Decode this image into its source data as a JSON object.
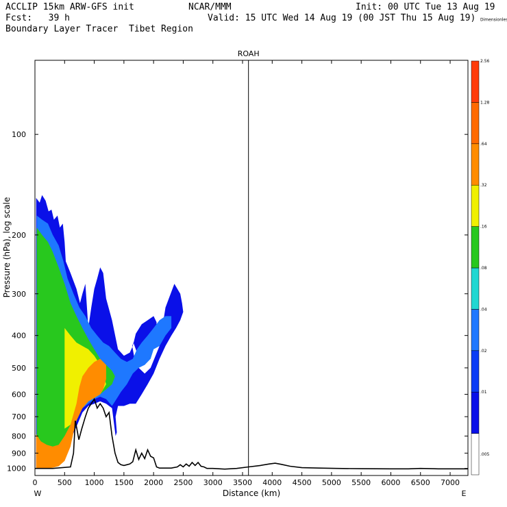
{
  "header": {
    "left_line1": "ACCLIP 15km ARW-GFS init",
    "center_line1": "NCAR/MMM",
    "right_line1": "Init: 00 UTC Tue 13 Aug 19",
    "left_line2": "Fcst:   39 h",
    "right_line2": "Valid: 15 UTC Wed 14 Aug 19 (00 JST Thu 15 Aug 19)",
    "line3": "Boundary Layer Tracer  Tibet Region"
  },
  "chart_data": {
    "type": "contour cross-section",
    "marker_label": "ROAH",
    "marker_distance_km": 3600,
    "xlabel": "Distance (km)",
    "x_end_left": "W",
    "x_end_right": "E",
    "xlim": [
      0,
      7300
    ],
    "x_ticks": [
      0,
      500,
      1000,
      1500,
      2000,
      2500,
      3000,
      3500,
      4000,
      4500,
      5000,
      5500,
      6000,
      6500,
      7000
    ],
    "ylabel": "Pressure (hPa), log scale",
    "yscale": "log",
    "ylim": [
      1050,
      60
    ],
    "y_ticks": [
      100,
      200,
      300,
      400,
      500,
      600,
      700,
      800,
      900,
      1000
    ],
    "colorbar": {
      "title": "Dimensionless",
      "levels": [
        ".005",
        ".01",
        ".02",
        ".04",
        ".08",
        ".16",
        ".32",
        ".64",
        "1.28",
        "2.56",
        "Dimensionless"
      ],
      "colors": [
        "#ffffff",
        "#0a10e8",
        "#0a3cf5",
        "#1e78ff",
        "#20d7d2",
        "#28c81e",
        "#f0f000",
        "#ff8c00",
        "#ff6a00",
        "#ff3c0a"
      ]
    },
    "terrain_profile": {
      "x_km": [
        0,
        300,
        600,
        650,
        680,
        700,
        740,
        790,
        850,
        900,
        950,
        1000,
        1050,
        1100,
        1150,
        1200,
        1250,
        1300,
        1350,
        1400,
        1450,
        1500,
        1550,
        1600,
        1650,
        1700,
        1750,
        1800,
        1850,
        1900,
        1950,
        2000,
        2050,
        2100,
        2200,
        2300,
        2400,
        2450,
        2500,
        2550,
        2600,
        2650,
        2700,
        2750,
        2800,
        2850,
        2900,
        3000,
        3200,
        3400,
        3600,
        3800,
        3950,
        4050,
        4150,
        4300,
        4500,
        4800,
        5100,
        5500,
        6000,
        6300,
        6500,
        6800,
        7000,
        7300
      ],
      "p_hpa": [
        1000,
        1000,
        990,
        900,
        720,
        750,
        820,
        760,
        700,
        660,
        640,
        620,
        660,
        640,
        660,
        700,
        680,
        800,
        900,
        960,
        975,
        980,
        975,
        970,
        955,
        880,
        940,
        900,
        935,
        880,
        920,
        930,
        990,
        998,
        998,
        998,
        990,
        975,
        990,
        970,
        985,
        960,
        980,
        960,
        985,
        990,
        1000,
        1000,
        1005,
        1000,
        990,
        980,
        970,
        965,
        972,
        985,
        995,
        998,
        1000,
        1002,
        1003,
        1003,
        1000,
        1003,
        1003,
        1003
      ]
    },
    "tracer_regions": [
      {
        "level": ".01",
        "x_km": [
          20,
          80,
          120,
          180,
          230,
          280,
          320,
          380,
          420,
          470,
          500,
          520,
          600,
          700,
          760,
          800,
          850,
          900,
          950,
          1000,
          1050,
          1100,
          1150,
          1200,
          1300,
          1400,
          1500,
          1600,
          1650,
          1700,
          1800,
          1900,
          2000,
          2050,
          2050,
          1950,
          1900,
          1850,
          1750,
          1700,
          1660,
          1640,
          1680,
          1750,
          1850,
          1950,
          2100,
          2200,
          2350,
          2450,
          2480,
          2500,
          2450,
          2380,
          2300,
          2200,
          2100,
          2000,
          1900,
          1800,
          1700,
          1600,
          1500,
          1400,
          1360,
          1380,
          1360,
          1300,
          1200,
          1100,
          1000,
          900,
          800,
          700,
          600,
          500,
          400,
          300,
          200,
          100,
          20
        ],
        "p_hpa": [
          155,
          160,
          152,
          158,
          170,
          168,
          180,
          175,
          190,
          185,
          210,
          240,
          260,
          290,
          320,
          300,
          280,
          380,
          330,
          290,
          270,
          250,
          260,
          310,
          360,
          440,
          460,
          450,
          430,
          395,
          370,
          360,
          350,
          365,
          420,
          430,
          460,
          490,
          470,
          440,
          420,
          430,
          470,
          500,
          520,
          500,
          430,
          330,
          280,
          300,
          320,
          340,
          360,
          380,
          400,
          430,
          470,
          520,
          560,
          600,
          640,
          640,
          650,
          650,
          700,
          780,
          800,
          660,
          640,
          630,
          640,
          650,
          680,
          750,
          820,
          900,
          950,
          980,
          990,
          990,
          990
        ]
      },
      {
        "level": ".04",
        "x_km": [
          30,
          120,
          220,
          300,
          400,
          480,
          550,
          650,
          750,
          850,
          950,
          1050,
          1150,
          1250,
          1350,
          1450,
          1550,
          1650,
          1720,
          1800,
          1900,
          2000,
          2100,
          2200,
          2300,
          2300,
          2200,
          2100,
          2000,
          1950,
          1850,
          1750,
          1650,
          1550,
          1450,
          1400,
          1350,
          1300,
          1200,
          1100,
          1000,
          900,
          800,
          700,
          600,
          500,
          400,
          300,
          200,
          100,
          30
        ],
        "p_hpa": [
          175,
          180,
          185,
          200,
          215,
          240,
          270,
          300,
          330,
          350,
          380,
          400,
          420,
          430,
          450,
          470,
          480,
          470,
          440,
          420,
          400,
          380,
          360,
          350,
          350,
          380,
          400,
          430,
          440,
          470,
          490,
          500,
          520,
          560,
          590,
          610,
          630,
          650,
          620,
          610,
          620,
          640,
          660,
          700,
          760,
          830,
          900,
          950,
          980,
          990,
          990
        ]
      },
      {
        "level": ".16",
        "x_km": [
          30,
          120,
          220,
          300,
          400,
          500,
          600,
          700,
          800,
          900,
          1000,
          1100,
          1200,
          1300,
          1350,
          1300,
          1200,
          1100,
          1000,
          900,
          800,
          700,
          600,
          500,
          400,
          300,
          200,
          100,
          30
        ],
        "p_hpa": [
          190,
          200,
          210,
          225,
          250,
          280,
          320,
          350,
          380,
          410,
          440,
          470,
          490,
          510,
          530,
          560,
          580,
          600,
          610,
          620,
          650,
          700,
          760,
          830,
          900,
          950,
          975,
          990,
          990
        ]
      },
      {
        "level": ".32",
        "x_km": [
          500,
          600,
          700,
          800,
          900,
          1000,
          1100,
          1150,
          1200,
          1150,
          1100,
          1000,
          900,
          800,
          700,
          600,
          500
        ],
        "p_hpa": [
          380,
          400,
          420,
          430,
          440,
          460,
          490,
          520,
          560,
          580,
          600,
          615,
          630,
          660,
          700,
          740,
          760
        ]
      },
      {
        "level": ".64",
        "x_km": [
          20,
          100,
          200,
          300,
          400,
          500,
          600,
          700,
          750,
          800,
          900,
          1000,
          1100,
          1200,
          1200,
          1150,
          1100,
          1000,
          900,
          800,
          700,
          650,
          600,
          500,
          400,
          300,
          200,
          100,
          20
        ],
        "p_hpa": [
          790,
          830,
          850,
          860,
          850,
          800,
          740,
          640,
          570,
          530,
          500,
          480,
          470,
          490,
          540,
          580,
          600,
          615,
          630,
          660,
          720,
          780,
          860,
          950,
          985,
          995,
          1000,
          1000,
          1000
        ]
      }
    ]
  }
}
